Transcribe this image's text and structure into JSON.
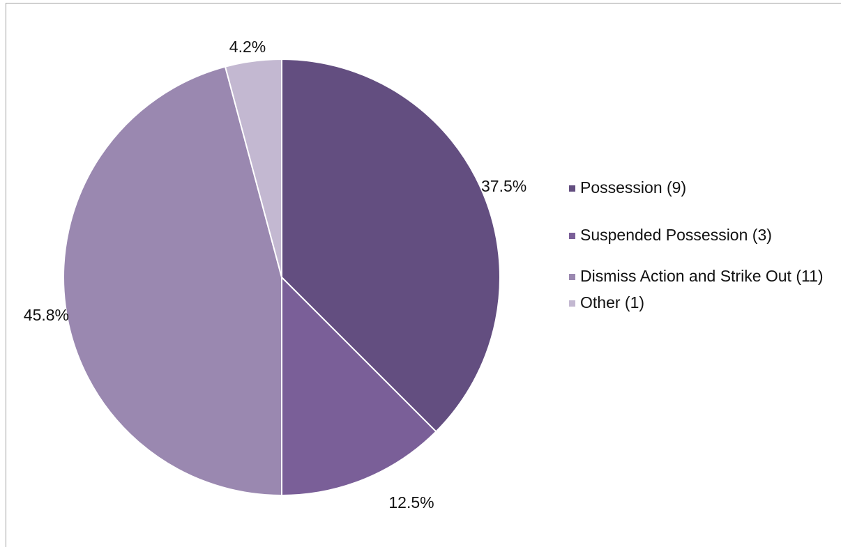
{
  "chart_data": {
    "type": "pie",
    "title": "",
    "slices": [
      {
        "label": "Possession (9)",
        "count": 9,
        "percent": 37.5,
        "percent_label": "37.5%",
        "color": "#634e80"
      },
      {
        "label": "Suspended Possession (3)",
        "count": 3,
        "percent": 12.5,
        "percent_label": "12.5%",
        "color": "#7a5f98"
      },
      {
        "label": "Dismiss Action and Strike Out (11)",
        "count": 11,
        "percent": 45.8,
        "percent_label": "45.8%",
        "color": "#9a88b0"
      },
      {
        "label": "Other (1)",
        "count": 1,
        "percent": 4.2,
        "percent_label": "4.2%",
        "color": "#c3b8d1"
      }
    ],
    "start_angle": "12 o'clock",
    "direction": "clockwise",
    "legend_position": "right"
  }
}
